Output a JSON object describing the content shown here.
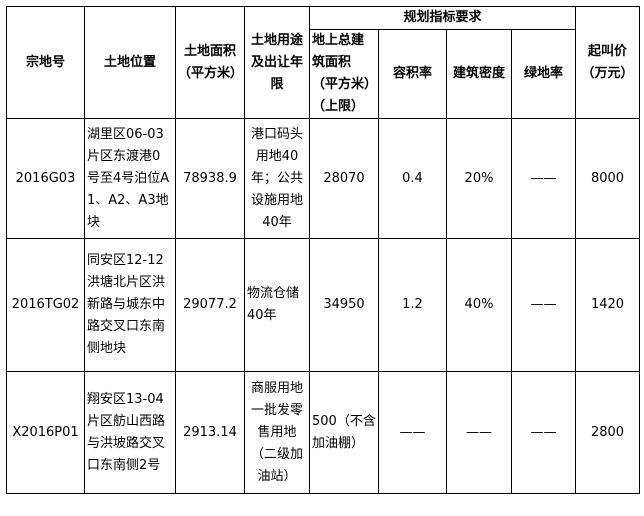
{
  "headers": {
    "parcel_no": "宗地号",
    "location": "土地位置",
    "area": "土地面积（平方米）",
    "usage": "土地用途及出让年限",
    "planning_group": "规划指标要求",
    "floor_area": "地上总建筑面积（平方米）（上限）",
    "plot_ratio": "容积率",
    "density": "建筑密度",
    "green_ratio": "绿地率",
    "price": "起叫价（万元）"
  },
  "rows": [
    {
      "parcel_no": "2016G03",
      "location": "湖里区06-03片区东渡港0号至4号泊位A1、A2、A3地块",
      "area": "78938.9",
      "usage": "港口码头用地40年；公共设施用地40年",
      "floor_area": "28070",
      "plot_ratio": "0.4",
      "density": "20%",
      "green_ratio": "——",
      "price": "8000"
    },
    {
      "parcel_no": "2016TG02",
      "location": "同安区12-12洪塘北片区洪新路与城东中路交叉口东南侧地块",
      "area": "29077.2",
      "usage": "物流仓储40年",
      "floor_area": "34950",
      "plot_ratio": "1.2",
      "density": "40%",
      "green_ratio": "——",
      "price": "1420"
    },
    {
      "parcel_no": "X2016P01",
      "location": "翔安区13-04片区舫山西路与洪坡路交叉口东南侧2号",
      "area": "2913.14",
      "usage": "商服用地一批发零售用地（二级加油站）",
      "floor_area": "500（不含加油棚）",
      "plot_ratio": "——",
      "density": "——",
      "green_ratio": "——",
      "price": "2800"
    }
  ]
}
